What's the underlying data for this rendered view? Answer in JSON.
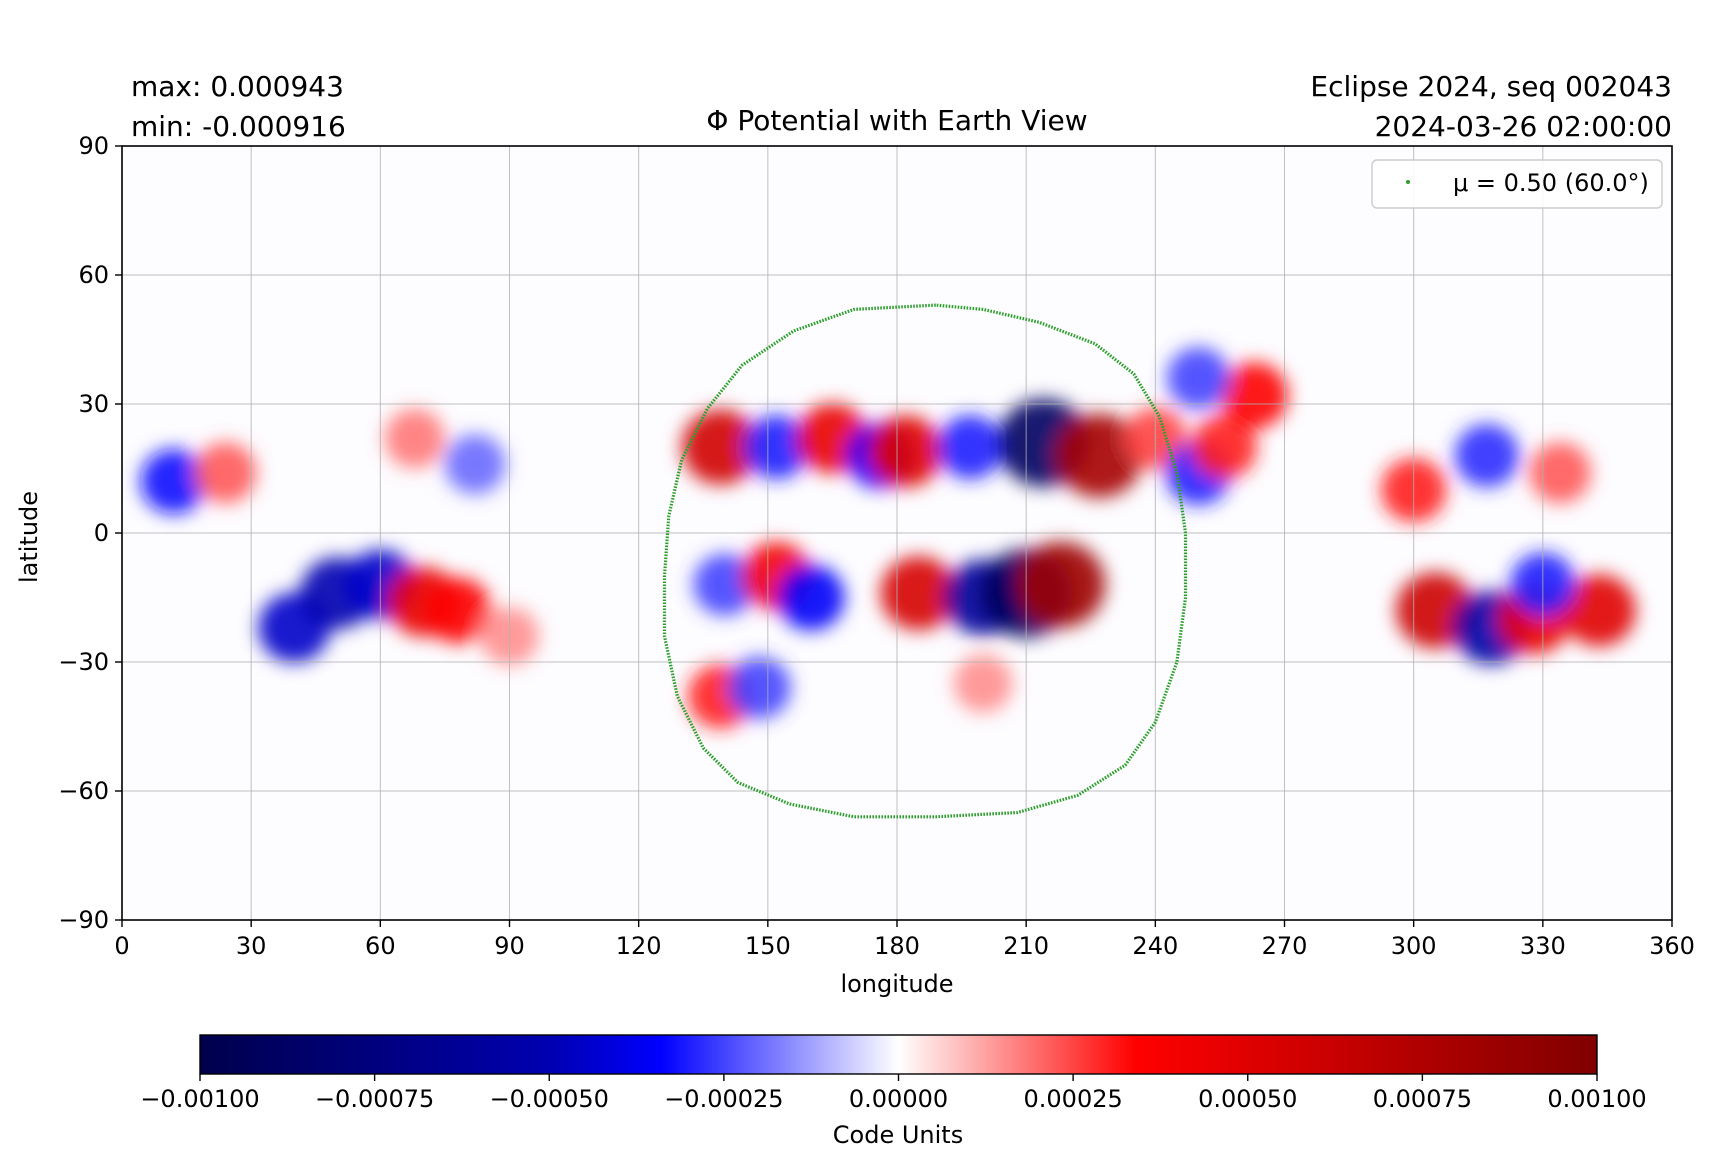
{
  "chart_data": {
    "type": "heatmap",
    "title": "Φ Potential with Earth View",
    "stats": {
      "max_label": "max:  0.000943",
      "min_label": "min:  -0.000916"
    },
    "run_info": {
      "line1": "Eclipse 2024, seq 002043",
      "line2": "2024-03-26 02:00:00"
    },
    "xlabel": "longitude",
    "ylabel": "latitude",
    "xlim": [
      0,
      360
    ],
    "ylim": [
      -90,
      90
    ],
    "xticks": [
      0,
      30,
      60,
      90,
      120,
      150,
      180,
      210,
      240,
      270,
      300,
      330,
      360
    ],
    "yticks": [
      -90,
      -60,
      -30,
      0,
      30,
      60,
      90
    ],
    "grid": true,
    "legend": {
      "placement": "top-right",
      "label": "μ = 0.50 (60.0°)",
      "color": "#2ca02c"
    },
    "earth_view_contour": {
      "name": "μ = 0.50 (60.0°)",
      "color": "#2ca02c",
      "points": [
        [
          189,
          53
        ],
        [
          170,
          52
        ],
        [
          156,
          47
        ],
        [
          144,
          39
        ],
        [
          136,
          29
        ],
        [
          130,
          17
        ],
        [
          127,
          4
        ],
        [
          126,
          -10
        ],
        [
          126,
          -24
        ],
        [
          129,
          -38
        ],
        [
          135,
          -50
        ],
        [
          143,
          -58
        ],
        [
          155,
          -63
        ],
        [
          170,
          -66
        ],
        [
          189,
          -66
        ],
        [
          208,
          -65
        ],
        [
          222,
          -61
        ],
        [
          233,
          -54
        ],
        [
          240,
          -44
        ],
        [
          245,
          -30
        ],
        [
          247,
          -15
        ],
        [
          247,
          0
        ],
        [
          245,
          14
        ],
        [
          241,
          27
        ],
        [
          235,
          37
        ],
        [
          226,
          44
        ],
        [
          213,
          49
        ],
        [
          200,
          52
        ]
      ]
    },
    "colorbar": {
      "label": "Code Units",
      "vmin": -0.001,
      "vmax": 0.001,
      "ticks": [
        -0.001,
        -0.00075,
        -0.0005,
        -0.00025,
        0,
        0.00025,
        0.0005,
        0.00075,
        0.001
      ],
      "tick_labels": [
        "−0.00100",
        "−0.00075",
        "−0.00050",
        "−0.00025",
        "0.00000",
        "0.00025",
        "0.00050",
        "0.00075",
        "0.00100"
      ],
      "colormap": "seismic",
      "colors": [
        "#00004c",
        "#0000ff",
        "#ffffff",
        "#ff0000",
        "#800000"
      ]
    },
    "features": [
      {
        "lon": 12,
        "lat": 12,
        "value": -0.00032
      },
      {
        "lon": 24,
        "lat": 14,
        "value": 0.00022
      },
      {
        "lon": 68,
        "lat": 22,
        "value": 0.00018
      },
      {
        "lon": 82,
        "lat": 16,
        "value": -0.0002
      },
      {
        "lon": 139,
        "lat": 20,
        "value": 0.00058
      },
      {
        "lon": 152,
        "lat": 20,
        "value": -0.0003
      },
      {
        "lon": 165,
        "lat": 22,
        "value": 0.00045
      },
      {
        "lon": 176,
        "lat": 18,
        "value": -0.00035
      },
      {
        "lon": 182,
        "lat": 19,
        "value": 0.0005
      },
      {
        "lon": 197,
        "lat": 20,
        "value": -0.0003
      },
      {
        "lon": 214,
        "lat": 21,
        "value": -0.0009
      },
      {
        "lon": 227,
        "lat": 18,
        "value": 0.0008
      },
      {
        "lon": 240,
        "lat": 22,
        "value": 0.00025
      },
      {
        "lon": 250,
        "lat": 14,
        "value": -0.0003
      },
      {
        "lon": 256,
        "lat": 20,
        "value": 0.0003
      },
      {
        "lon": 263,
        "lat": 32,
        "value": 0.00035
      },
      {
        "lon": 250,
        "lat": 36,
        "value": -0.00025
      },
      {
        "lon": 300,
        "lat": 10,
        "value": 0.0003
      },
      {
        "lon": 317,
        "lat": 18,
        "value": -0.00028
      },
      {
        "lon": 334,
        "lat": 14,
        "value": 0.00022
      },
      {
        "lon": 40,
        "lat": -22,
        "value": -0.00045
      },
      {
        "lon": 50,
        "lat": -14,
        "value": -0.0005
      },
      {
        "lon": 60,
        "lat": -12,
        "value": -0.00045
      },
      {
        "lon": 70,
        "lat": -16,
        "value": 0.00045
      },
      {
        "lon": 78,
        "lat": -18,
        "value": 0.00035
      },
      {
        "lon": 90,
        "lat": -24,
        "value": 0.00015
      },
      {
        "lon": 140,
        "lat": -12,
        "value": -0.00025
      },
      {
        "lon": 152,
        "lat": -10,
        "value": 0.0004
      },
      {
        "lon": 160,
        "lat": -15,
        "value": -0.00035
      },
      {
        "lon": 139,
        "lat": -38,
        "value": 0.0003
      },
      {
        "lon": 148,
        "lat": -36,
        "value": -0.00025
      },
      {
        "lon": 185,
        "lat": -14,
        "value": 0.00055
      },
      {
        "lon": 200,
        "lat": -15,
        "value": -0.0006
      },
      {
        "lon": 210,
        "lat": -14,
        "value": -0.00092
      },
      {
        "lon": 218,
        "lat": -12,
        "value": 0.00085
      },
      {
        "lon": 305,
        "lat": -18,
        "value": 0.0006
      },
      {
        "lon": 318,
        "lat": -22,
        "value": -0.00055
      },
      {
        "lon": 328,
        "lat": -20,
        "value": 0.00045
      },
      {
        "lon": 343,
        "lat": -18,
        "value": 0.0005
      },
      {
        "lon": 330,
        "lat": -12,
        "value": -0.0003
      },
      {
        "lon": 200,
        "lat": -35,
        "value": 0.00015
      }
    ]
  }
}
